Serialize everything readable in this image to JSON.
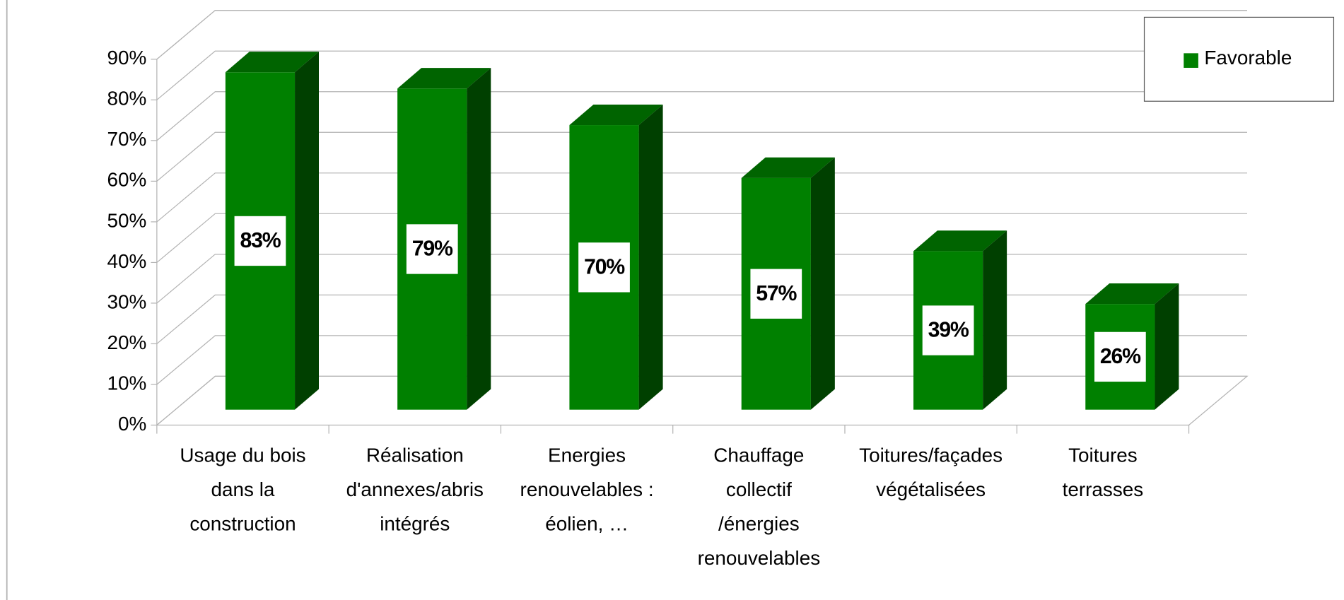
{
  "chart_data": {
    "type": "bar3d",
    "categories": [
      "Usage du bois\ndans la\nconstruction",
      "Réalisation\nd'annexes/abris\nintégrés",
      "Energies\nrenouvelables :\néolien, …",
      "Chauffage\ncollectif\n/énergies\nrenouvelables",
      "Toitures/façades\nvégétalisées",
      "Toitures\nterrasses"
    ],
    "series": [
      {
        "name": "Favorable",
        "color": "#008000",
        "values": [
          83,
          79,
          70,
          57,
          39,
          26
        ],
        "value_labels": [
          "83%",
          "79%",
          "70%",
          "57%",
          "39%",
          "26%"
        ]
      }
    ],
    "ylim": [
      0,
      90
    ],
    "yticks": [
      {
        "value": 0,
        "label": "0%"
      },
      {
        "value": 10,
        "label": "10%"
      },
      {
        "value": 20,
        "label": "20%"
      },
      {
        "value": 30,
        "label": "30%"
      },
      {
        "value": 40,
        "label": "40%"
      },
      {
        "value": 50,
        "label": "50%"
      },
      {
        "value": 60,
        "label": "60%"
      },
      {
        "value": 70,
        "label": "70%"
      },
      {
        "value": 80,
        "label": "80%"
      },
      {
        "value": 90,
        "label": "90%"
      }
    ],
    "grid": true,
    "legend": "top-right"
  }
}
